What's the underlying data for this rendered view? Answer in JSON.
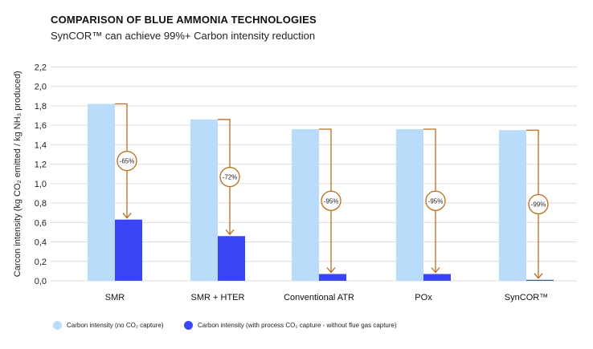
{
  "chart_data": {
    "type": "bar",
    "title": "COMPARISON OF BLUE AMMONIA TECHNOLOGIES",
    "subtitle": "SynCOR™ can achieve 99%+ Carbon intensity reduction",
    "ylabel": "Carcon intensity (kg CO₂ emitted / kg NH₃ produced)",
    "xlabel": "",
    "ylim": [
      0,
      2.2
    ],
    "yticks": [
      "0,0",
      "0,2",
      "0,4",
      "0,6",
      "0,8",
      "1,0",
      "1,2",
      "1,4",
      "1,6",
      "1,8",
      "2,0",
      "2,2"
    ],
    "grid": true,
    "legend_placement": "bottom-left",
    "categories": [
      "SMR",
      "SMR + HTER",
      "Conventional ATR",
      "POx",
      "SynCOR™"
    ],
    "series": [
      {
        "name": "Carbon intensity (no CO₂ capture)",
        "color": "#b9dcfb",
        "values": [
          1.82,
          1.66,
          1.56,
          1.56,
          1.55
        ]
      },
      {
        "name": "Carbon intensity (with process CO₂ capture - without flue gas capture)",
        "color": "#3a46f5",
        "values": [
          0.63,
          0.46,
          0.07,
          0.07,
          0.01
        ]
      }
    ],
    "annotations": [
      "-65%",
      "-72%",
      "-95%",
      "-95%",
      "-99%"
    ],
    "annotation_color": "#b86e1c"
  }
}
